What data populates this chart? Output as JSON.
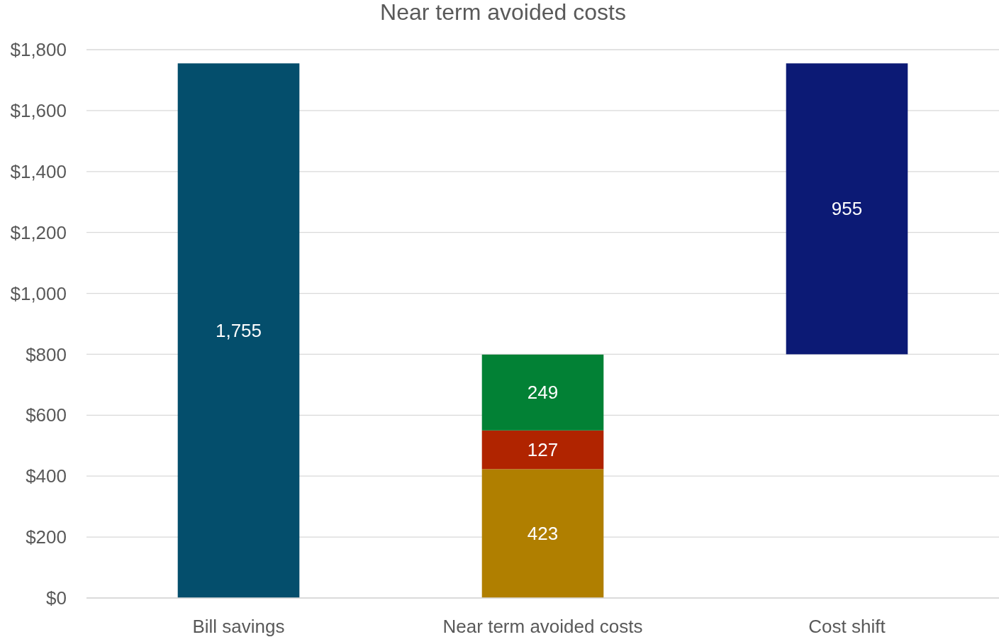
{
  "chart_data": {
    "type": "bar",
    "title": "Near term avoided costs",
    "categories": [
      "Bill savings",
      "Near term avoided costs",
      "Cost shift"
    ],
    "stacked": true,
    "series": [
      {
        "color": "#044e6c",
        "values": [
          1755,
          null,
          null
        ],
        "value_labels": [
          "1,755",
          null,
          null
        ]
      },
      {
        "color": "#b07f00",
        "values": [
          null,
          423,
          null
        ],
        "value_labels": [
          null,
          "423",
          null
        ]
      },
      {
        "color": "#b02400",
        "values": [
          null,
          127,
          null
        ],
        "value_labels": [
          null,
          "127",
          null
        ]
      },
      {
        "color": "#028135",
        "values": [
          null,
          249,
          null
        ],
        "value_labels": [
          null,
          "249",
          null
        ]
      },
      {
        "color": "#0c1a75",
        "values": [
          null,
          null,
          955
        ],
        "base": [
          null,
          null,
          800
        ],
        "value_labels": [
          null,
          null,
          "955"
        ]
      }
    ],
    "grid": "y",
    "ylim": [
      0,
      1800
    ],
    "yticks": [
      {
        "value": 0,
        "label": "$0"
      },
      {
        "value": 200,
        "label": "$200"
      },
      {
        "value": 400,
        "label": "$400"
      },
      {
        "value": 600,
        "label": "$600"
      },
      {
        "value": 800,
        "label": "$800"
      },
      {
        "value": 1000,
        "label": "$1,000"
      },
      {
        "value": 1200,
        "label": "$1,200"
      },
      {
        "value": 1400,
        "label": "$1,400"
      },
      {
        "value": 1600,
        "label": "$1,600"
      },
      {
        "value": 1800,
        "label": "$1,800"
      }
    ]
  }
}
